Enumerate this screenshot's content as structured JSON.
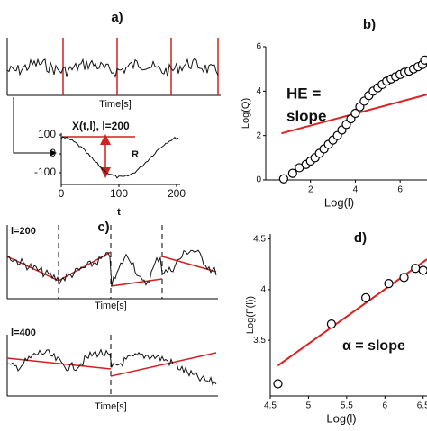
{
  "panels": {
    "a": {
      "label": "a)",
      "x_label": "Time[s]",
      "inset_title": "X(t,l), l=200",
      "inset_range_label": "R",
      "inset_x_label": "t",
      "inset_xticks": [
        0,
        100,
        200
      ],
      "inset_yticks": [
        100,
        0,
        -100
      ]
    },
    "c": {
      "label": "c)",
      "top_title": "l=200",
      "bottom_title": "l=400",
      "x_label": "Time[s]"
    }
  },
  "chart_data": [
    {
      "type": "scatter",
      "title": "b)",
      "x_label": "Log(l)",
      "y_label": "Log(Q)",
      "annotation": [
        "HE =",
        "slope"
      ],
      "x": [
        0.8,
        1.2,
        1.5,
        1.8,
        2.0,
        2.2,
        2.4,
        2.6,
        2.8,
        3.0,
        3.2,
        3.4,
        3.6,
        3.8,
        4.0,
        4.2,
        4.4,
        4.6,
        4.8,
        5.0,
        5.2,
        5.4,
        5.6,
        5.8,
        6.0,
        6.2,
        6.4,
        6.6,
        6.8,
        7.0,
        7.1
      ],
      "values": [
        0.05,
        0.3,
        0.55,
        0.7,
        0.85,
        1.0,
        1.2,
        1.4,
        1.6,
        1.8,
        2.0,
        2.25,
        2.5,
        2.75,
        3.0,
        3.3,
        3.55,
        3.8,
        4.0,
        4.15,
        4.3,
        4.45,
        4.55,
        4.65,
        4.75,
        4.85,
        4.9,
        5.0,
        5.1,
        5.2,
        5.4
      ],
      "fit": {
        "x": [
          0.7,
          7.2
        ],
        "values": [
          2.1,
          3.85
        ],
        "color": "#e02020"
      },
      "xlim": [
        0,
        7.2
      ],
      "ylim": [
        0,
        6
      ],
      "xticks": [
        2,
        4,
        6
      ],
      "yticks": [
        0,
        2,
        4,
        6
      ]
    },
    {
      "type": "scatter",
      "title": "d)",
      "x_label": "Log(l)",
      "y_label": "Log(F(l))",
      "annotation": [
        "α = slope"
      ],
      "x": [
        4.6,
        5.3,
        5.75,
        6.05,
        6.25,
        6.4,
        6.5
      ],
      "values": [
        3.07,
        3.66,
        3.92,
        4.06,
        4.12,
        4.21,
        4.19
      ],
      "fit": {
        "x": [
          4.6,
          6.55
        ],
        "values": [
          3.25,
          4.3
        ],
        "color": "#e02020"
      },
      "xlim": [
        4.5,
        6.55
      ],
      "ylim": [
        2.95,
        4.55
      ],
      "xticks": [
        4.5,
        5,
        5.5,
        6,
        6.5
      ],
      "yticks": [
        3.5,
        4,
        4.5
      ]
    }
  ]
}
